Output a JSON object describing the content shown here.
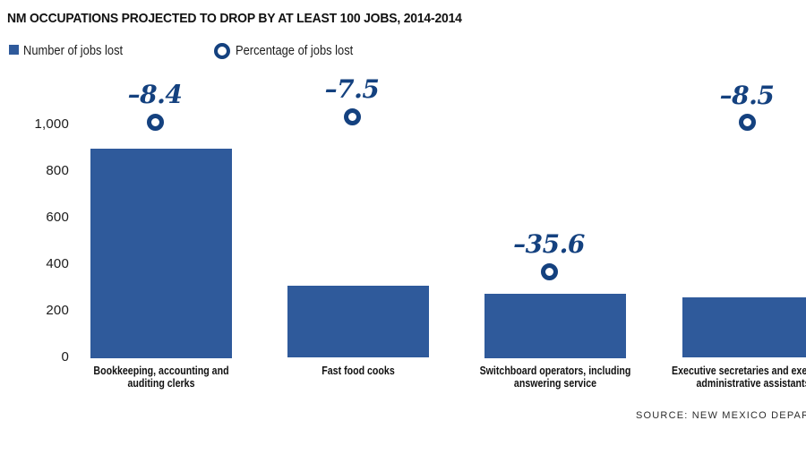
{
  "title": "NM OCCUPATIONS PROJECTED TO DROP BY AT LEAST 100 JOBS, 2014-2014",
  "legend": {
    "bar_label": "Number of jobs lost",
    "point_label": "Percentage of jobs lost"
  },
  "source": "SOURCE: NEW MEXICO DEPARTMENT",
  "colors": {
    "bar": "#2f5a9b",
    "accent": "#14417f",
    "title_text": "#111111",
    "body_text": "#1c1c1c"
  },
  "chart_data": {
    "type": "bar",
    "title": "NM OCCUPATIONS PROJECTED TO DROP BY AT LEAST 100 JOBS, 2014-2014",
    "categories": [
      "Bookkeeping, accounting and auditing clerks",
      "Fast food cooks",
      "Switchboard operators, including answering service",
      "Executive secretaries and executive administrative assistants"
    ],
    "category_lines": [
      [
        "Bookkeeping, accounting and",
        "auditing clerks"
      ],
      [
        "Fast food cooks"
      ],
      [
        "Switchboard operators, including",
        "answering service"
      ],
      [
        "Executive secretaries and executive",
        "administrative assistants"
      ]
    ],
    "series": [
      {
        "name": "Number of jobs lost",
        "type": "bar",
        "values": [
          900,
          310,
          275,
          260
        ]
      },
      {
        "name": "Percentage of jobs lost",
        "type": "point",
        "values": [
          -8.4,
          -7.5,
          -35.6,
          -8.5
        ],
        "point_labels": [
          "–8.4",
          "–7.5",
          "–35.6",
          "–8.5"
        ]
      }
    ],
    "ylim": [
      0,
      1000
    ],
    "yticks": {
      "values": [
        0,
        200,
        400,
        600,
        800,
        1000
      ],
      "labels": [
        "0",
        "200",
        "400",
        "600",
        "800",
        "1,000"
      ]
    },
    "grid": false,
    "legend_position": "top-left",
    "source_note": "SOURCE: NEW MEXICO DEPARTMENT"
  }
}
